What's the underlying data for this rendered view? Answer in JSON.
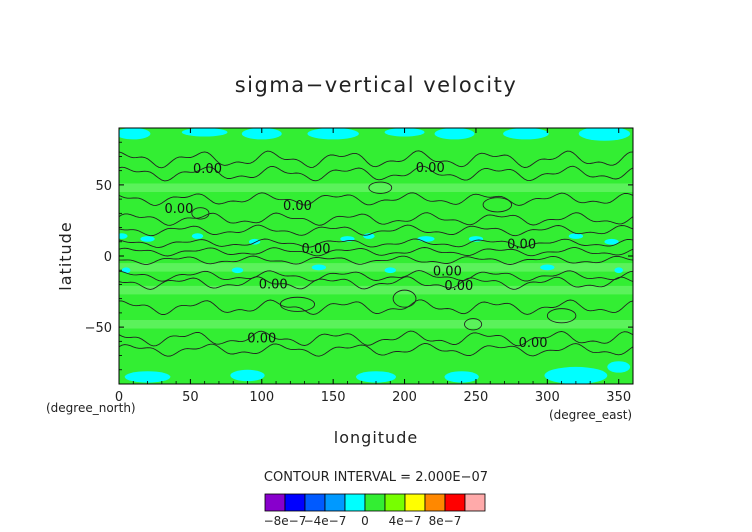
{
  "chart_data": {
    "type": "heatmap",
    "title": "sigma−vertical velocity",
    "xlabel": "longitude",
    "ylabel": "latitude",
    "x_unit": "(degree_east)",
    "y_unit": "(degree_north)",
    "xlim": [
      0,
      360
    ],
    "ylim": [
      -90,
      90
    ],
    "x_ticks": [
      "0",
      "50",
      "100",
      "150",
      "200",
      "250",
      "300",
      "350"
    ],
    "y_ticks": [
      "50",
      "0",
      "−50"
    ],
    "x_tick_values": [
      0,
      50,
      100,
      150,
      200,
      250,
      300,
      350
    ],
    "y_tick_values": [
      50,
      0,
      -50
    ],
    "contour_interval_text": "CONTOUR INTERVAL = 2.000E−07",
    "contour_labels": [
      {
        "text": "0.00",
        "lon": 62,
        "lat": 61
      },
      {
        "text": "0.00",
        "lon": 42,
        "lat": 33
      },
      {
        "text": "0.00",
        "lon": 125,
        "lat": 35
      },
      {
        "text": "0.00",
        "lon": 218,
        "lat": 62
      },
      {
        "text": "0.00",
        "lon": 138,
        "lat": 5
      },
      {
        "text": "0.00",
        "lon": 282,
        "lat": 8
      },
      {
        "text": "0.00",
        "lon": 230,
        "lat": -11
      },
      {
        "text": "0.00",
        "lon": 108,
        "lat": -20
      },
      {
        "text": "0.00",
        "lon": 238,
        "lat": -21
      },
      {
        "text": "0.00",
        "lon": 100,
        "lat": -58
      },
      {
        "text": "0.00",
        "lon": 290,
        "lat": -61
      }
    ],
    "colorbar": {
      "levels": [
        -1e-06,
        -8e-07,
        -6e-07,
        -4e-07,
        -2e-07,
        0,
        2e-07,
        4e-07,
        6e-07,
        8e-07,
        1e-06
      ],
      "colors": [
        "#8800cc",
        "#0000ff",
        "#005aff",
        "#0099ff",
        "#00ffff",
        "#33ee33",
        "#77ff00",
        "#ffff00",
        "#ff8800",
        "#ff0000",
        "#ffaaaa"
      ],
      "tick_labels": [
        "−8e−7",
        "−4e−7",
        "0",
        "4e−7",
        "8e−7"
      ]
    },
    "colors": {
      "background_field": "#33ee33",
      "light_green": "#6cf46c",
      "negative_region": "#00ffff",
      "contour_line": "#222222"
    }
  }
}
